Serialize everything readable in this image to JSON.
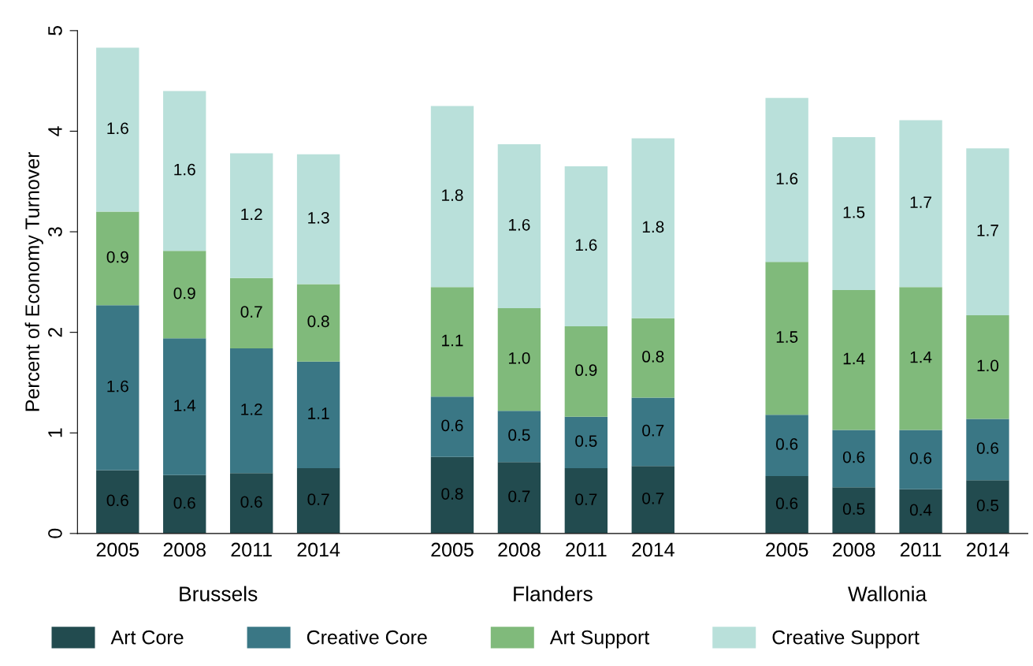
{
  "chart_data": {
    "type": "bar",
    "stacked": true,
    "ylabel": "Percent of Economy Turnover",
    "categories": [
      "2005",
      "2008",
      "2011",
      "2014",
      null,
      "2005",
      "2008",
      "2011",
      "2014",
      null,
      "2005",
      "2008",
      "2011",
      "2014"
    ],
    "annotations": [
      "Brussels",
      "Flanders",
      "Wallonia"
    ],
    "ylim": [
      0,
      5
    ],
    "yticks": [
      0,
      1,
      2,
      3,
      4,
      5
    ],
    "grid": false,
    "legend": "bottom",
    "series": [
      {
        "name": "Art Core",
        "color": "#224b4f",
        "values": [
          0.63,
          0.58,
          0.6,
          0.65,
          null,
          0.76,
          0.71,
          0.65,
          0.67,
          null,
          0.57,
          0.46,
          0.44,
          0.53
        ],
        "value_labels": [
          "0.6",
          "0.6",
          "0.6",
          "0.7",
          null,
          "0.8",
          "0.7",
          "0.7",
          "0.7",
          null,
          "0.6",
          "0.5",
          "0.4",
          "0.5"
        ]
      },
      {
        "name": "Creative Core",
        "color": "#3a7785",
        "values": [
          1.64,
          1.36,
          1.24,
          1.06,
          null,
          0.6,
          0.51,
          0.51,
          0.68,
          null,
          0.61,
          0.57,
          0.59,
          0.61
        ],
        "value_labels": [
          "1.6",
          "1.4",
          "1.2",
          "1.1",
          null,
          "0.6",
          "0.5",
          "0.5",
          "0.7",
          null,
          "0.6",
          "0.6",
          "0.6",
          "0.6"
        ]
      },
      {
        "name": "Art Support",
        "color": "#80ba7b",
        "values": [
          0.93,
          0.87,
          0.7,
          0.77,
          null,
          1.09,
          1.02,
          0.9,
          0.79,
          null,
          1.52,
          1.39,
          1.42,
          1.03
        ],
        "value_labels": [
          "0.9",
          "0.9",
          "0.7",
          "0.8",
          null,
          "1.1",
          "1.0",
          "0.9",
          "0.8",
          null,
          "1.5",
          "1.4",
          "1.4",
          "1.0"
        ]
      },
      {
        "name": "Creative Support",
        "color": "#b9e0da",
        "values": [
          1.63,
          1.59,
          1.24,
          1.29,
          null,
          1.8,
          1.63,
          1.59,
          1.79,
          null,
          1.63,
          1.52,
          1.66,
          1.66
        ],
        "value_labels": [
          "1.6",
          "1.6",
          "1.2",
          "1.3",
          null,
          "1.8",
          "1.6",
          "1.6",
          "1.8",
          null,
          "1.6",
          "1.5",
          "1.7",
          "1.7"
        ]
      }
    ]
  }
}
